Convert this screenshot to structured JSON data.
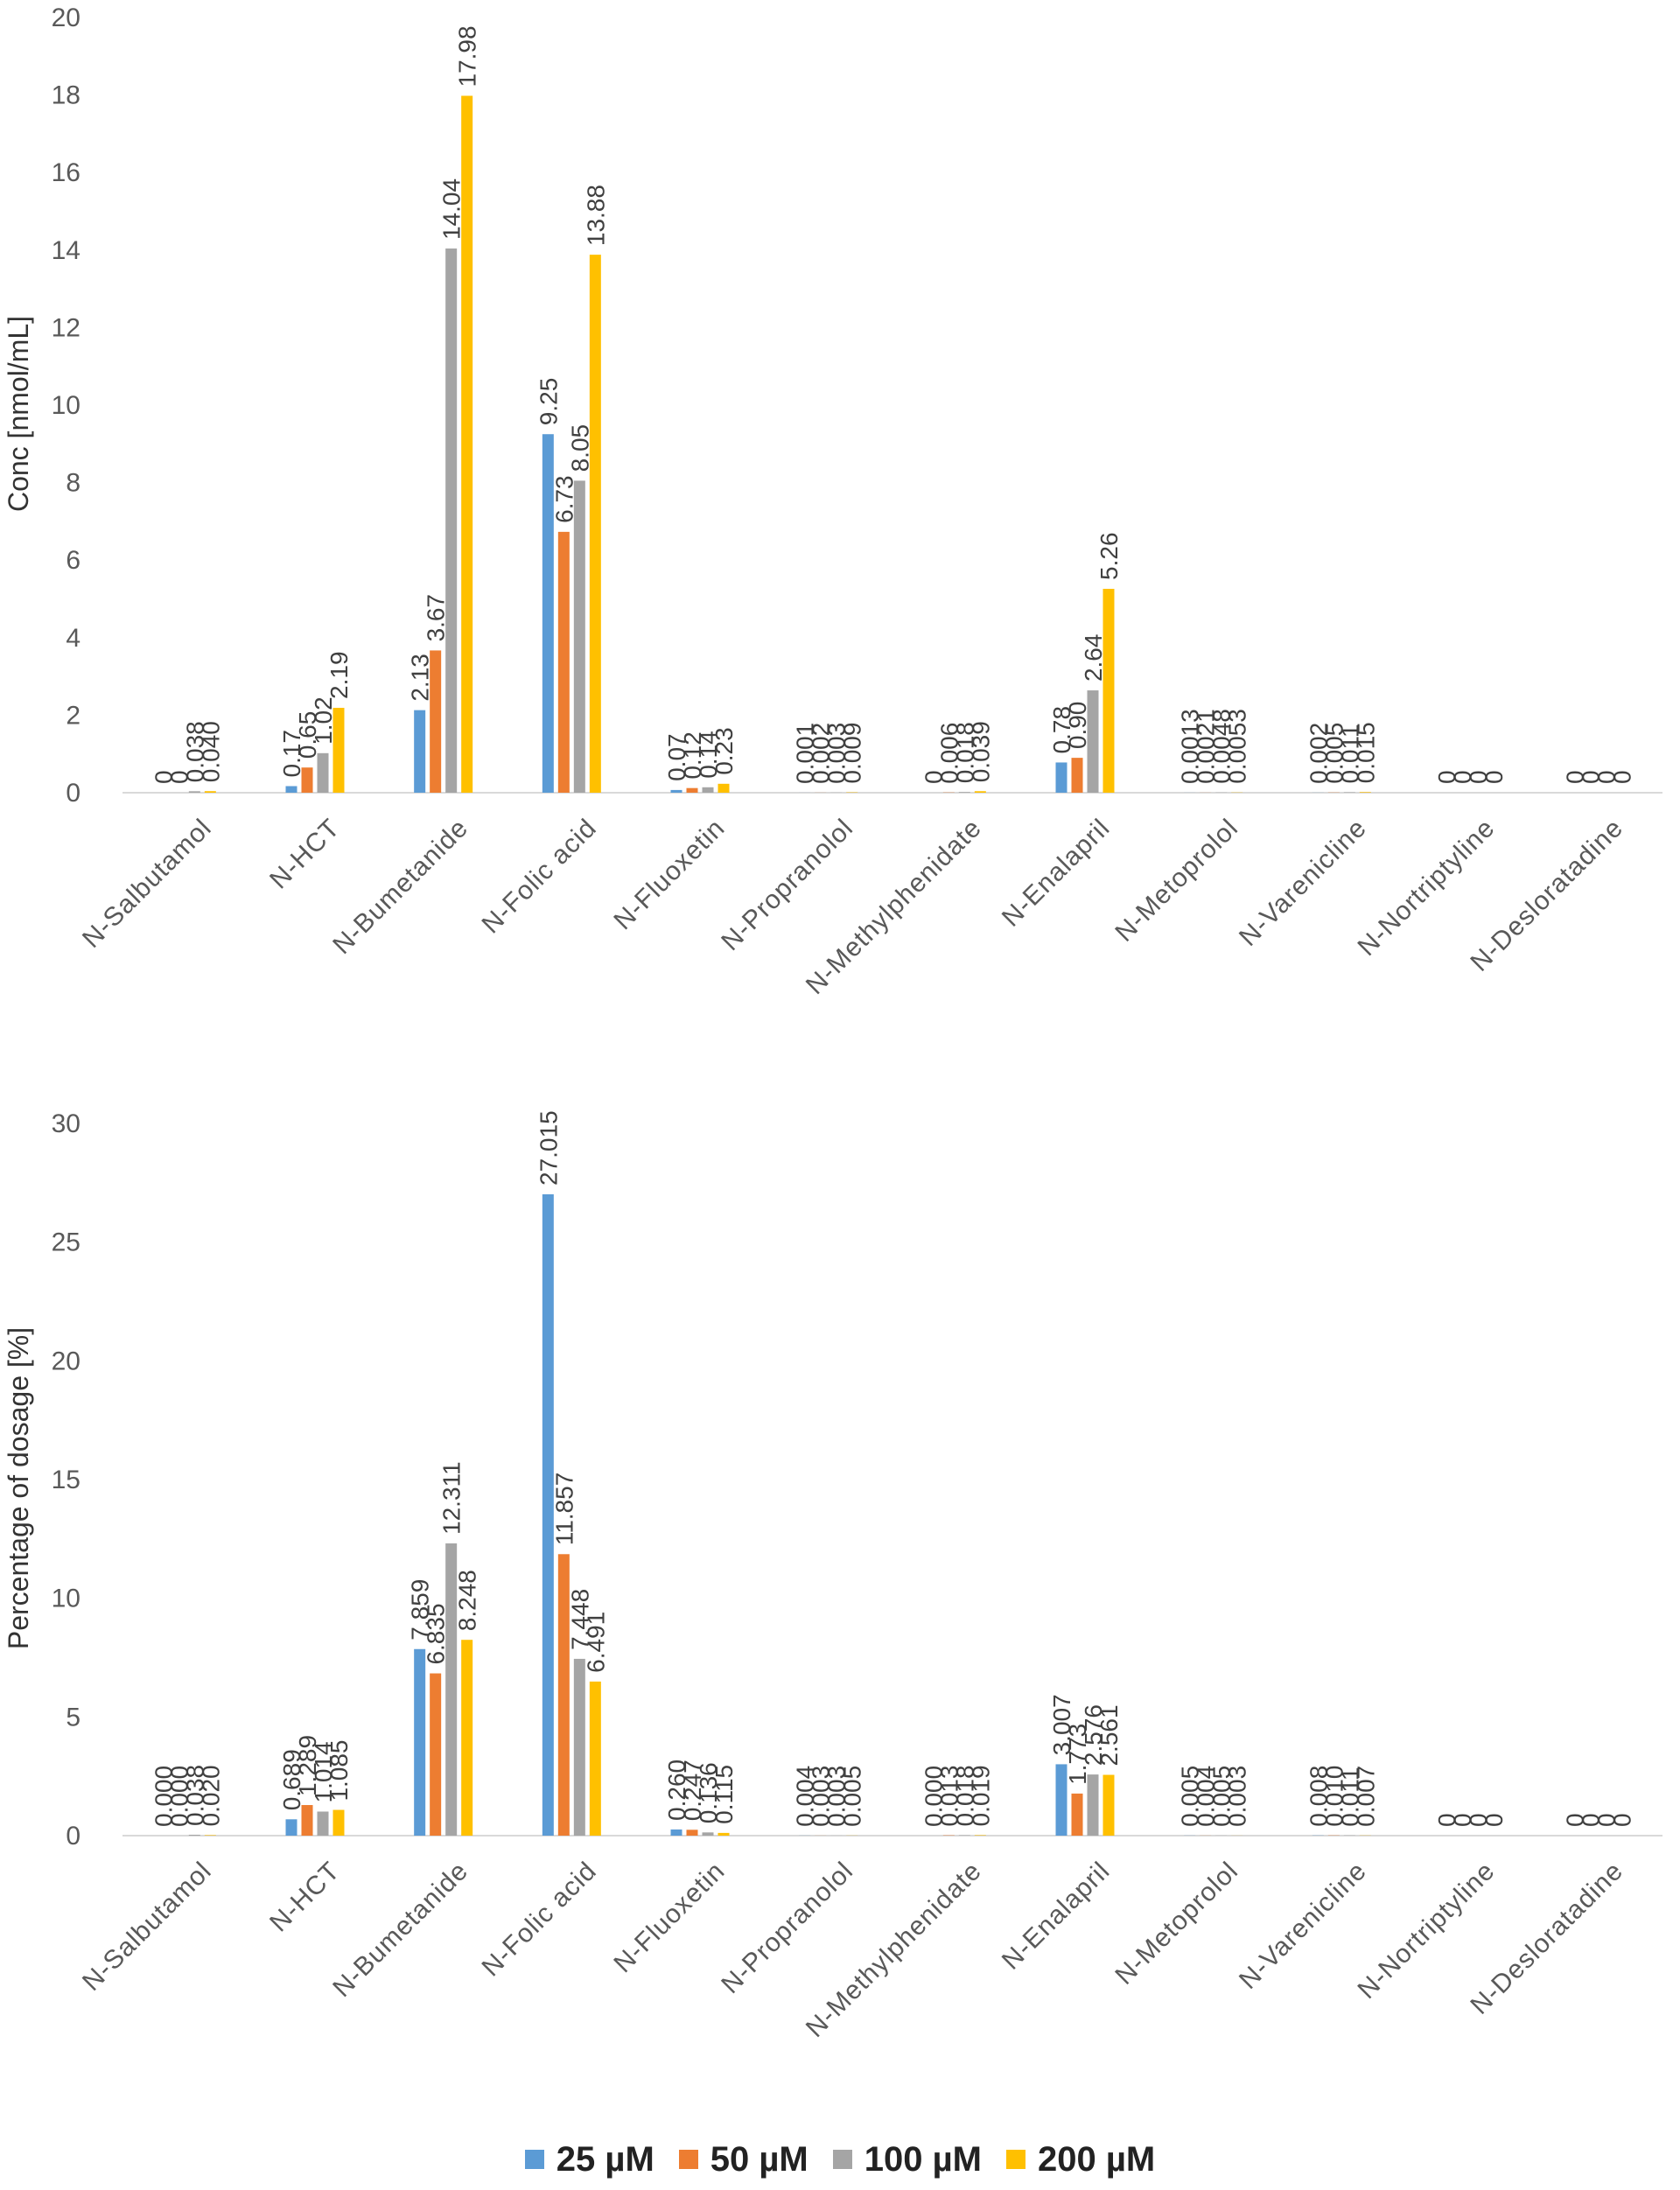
{
  "chart_data": [
    {
      "type": "bar",
      "ylabel": "Conc [nmol/mL]",
      "ylim": [
        0,
        20
      ],
      "yticks": [
        "0",
        "2",
        "4",
        "6",
        "8",
        "10",
        "12",
        "14",
        "16",
        "18",
        "20"
      ],
      "categories": [
        "N-Salbutamol",
        "N-HCT",
        "N-Bumetanide",
        "N-Folic acid",
        "N-Fluoxetin",
        "N-Propranolol",
        "N-Methylphenidate",
        "N-Enalapril",
        "N-Metoprolol",
        "N-Varenicline",
        "N-Nortriptyline",
        "N-Desloratadine"
      ],
      "series": [
        {
          "name": "25 µM",
          "values": [
            0,
            0.17,
            2.13,
            9.25,
            0.07,
            0.001,
            0,
            0.78,
            0.0013,
            0.002,
            0,
            0
          ],
          "labels": [
            "0",
            "0.17",
            "2.13",
            "9.25",
            "0.07",
            "0.001",
            "0",
            "0.78",
            "0.0013",
            "0.002",
            "0",
            "0"
          ]
        },
        {
          "name": "50 µM",
          "values": [
            0,
            0.65,
            3.67,
            6.73,
            0.12,
            0.002,
            0.006,
            0.9,
            0.0021,
            0.005,
            0,
            0
          ],
          "labels": [
            "0",
            "0.65",
            "3.67",
            "6.73",
            "0.12",
            "0.002",
            "0.006",
            "0.90",
            "0.0021",
            "0.005",
            "0",
            "0"
          ]
        },
        {
          "name": "100 µM",
          "values": [
            0.038,
            1.02,
            14.04,
            8.05,
            0.14,
            0.003,
            0.018,
            2.64,
            0.0048,
            0.011,
            0,
            0
          ],
          "labels": [
            "0.038",
            "1.02",
            "14.04",
            "8.05",
            "0.14",
            "0.003",
            "0.018",
            "2.64",
            "0.0048",
            "0.011",
            "0",
            "0"
          ]
        },
        {
          "name": "200 µM",
          "values": [
            0.04,
            2.19,
            17.98,
            13.88,
            0.23,
            0.009,
            0.039,
            5.26,
            0.0053,
            0.015,
            0,
            0
          ],
          "labels": [
            "0.040",
            "2.19",
            "17.98",
            "13.88",
            "0.23",
            "0.009",
            "0.039",
            "5.26",
            "0.0053",
            "0.015",
            "0",
            "0"
          ]
        }
      ]
    },
    {
      "type": "bar",
      "ylabel": "Percentage of dosage [%]",
      "ylim": [
        0,
        30
      ],
      "yticks": [
        "0",
        "5",
        "10",
        "15",
        "20",
        "25",
        "30"
      ],
      "categories": [
        "N-Salbutamol",
        "N-HCT",
        "N-Bumetanide",
        "N-Folic acid",
        "N-Fluoxetin",
        "N-Propranolol",
        "N-Methylphenidate",
        "N-Enalapril",
        "N-Metoprolol",
        "N-Varenicline",
        "N-Nortriptyline",
        "N-Desloratadine"
      ],
      "series": [
        {
          "name": "25 µM",
          "values": [
            0.0,
            0.689,
            7.859,
            27.015,
            0.26,
            0.004,
            0.0,
            3.007,
            0.005,
            0.008,
            0,
            0
          ],
          "labels": [
            "0.000",
            "0.689",
            "7.859",
            "27.015",
            "0.260",
            "0.004",
            "0.000",
            "3.007",
            "0.005",
            "0.008",
            "0",
            "0"
          ]
        },
        {
          "name": "50 µM",
          "values": [
            0.0,
            1.289,
            6.835,
            11.857,
            0.247,
            0.003,
            0.013,
            1.773,
            0.004,
            0.01,
            0,
            0
          ],
          "labels": [
            "0.000",
            "1.289",
            "6.835",
            "11.857",
            "0.247",
            "0.003",
            "0.013",
            "1.773",
            "0.004",
            "0.010",
            "0",
            "0"
          ]
        },
        {
          "name": "100 µM",
          "values": [
            0.038,
            1.014,
            12.311,
            7.448,
            0.136,
            0.003,
            0.018,
            2.576,
            0.005,
            0.011,
            0,
            0
          ],
          "labels": [
            "0.038",
            "1.014",
            "12.311",
            "7.448",
            "0.136",
            "0.003",
            "0.018",
            "2.576",
            "0.005",
            "0.011",
            "0",
            "0"
          ]
        },
        {
          "name": "200 µM",
          "values": [
            0.02,
            1.085,
            8.248,
            6.491,
            0.115,
            0.005,
            0.019,
            2.561,
            0.003,
            0.007,
            0,
            0
          ],
          "labels": [
            "0.020",
            "1.085",
            "8.248",
            "6.491",
            "0.115",
            "0.005",
            "0.019",
            "2.561",
            "0.003",
            "0.007",
            "0",
            "0"
          ]
        }
      ]
    }
  ],
  "legend": {
    "items": [
      {
        "label": "25 µM",
        "color": "#5B9BD5"
      },
      {
        "label": "50 µM",
        "color": "#ED7D31"
      },
      {
        "label": "100 µM",
        "color": "#A5A5A5"
      },
      {
        "label": "200 µM",
        "color": "#FFC000"
      }
    ]
  },
  "colors": [
    "#5B9BD5",
    "#ED7D31",
    "#A5A5A5",
    "#FFC000"
  ]
}
